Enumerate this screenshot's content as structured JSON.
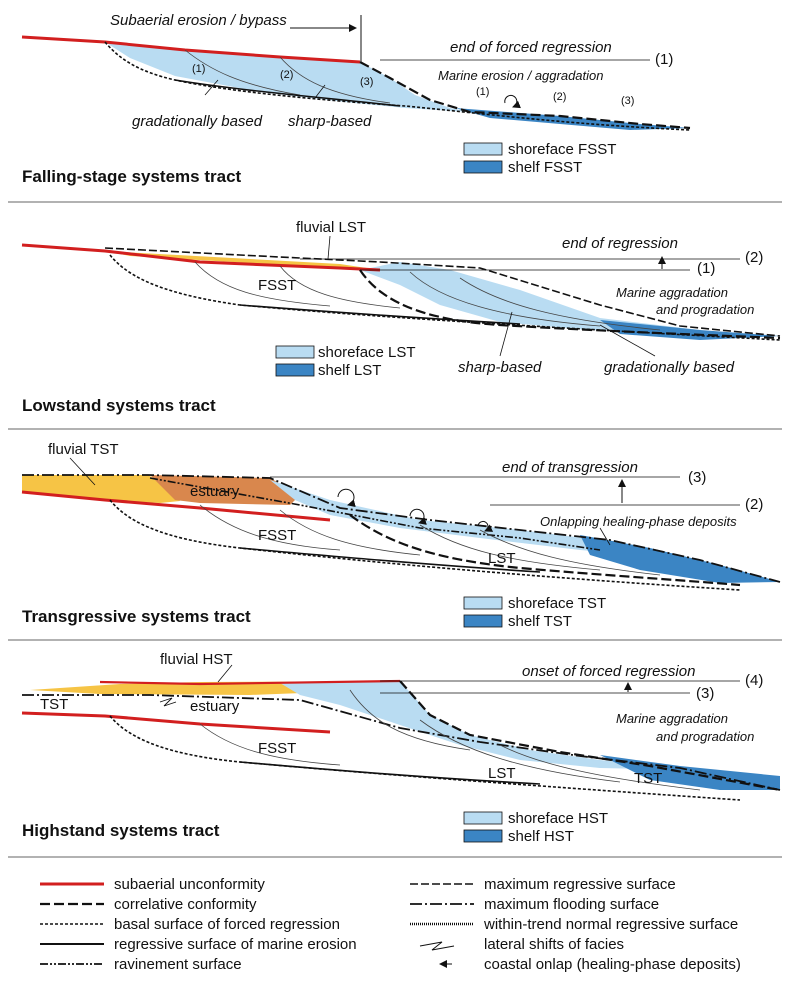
{
  "colors": {
    "shoreface": "#b9dcf2",
    "shelf": "#3b85c4",
    "fluvial": "#f6c445",
    "estuary": "#d9874d",
    "unconformity": "#d21f1f"
  },
  "panel1": {
    "title": "Falling-stage systems tract",
    "annot_top": "Subaerial erosion / bypass",
    "end_label": "end of forced regression",
    "end_num": "(1)",
    "marine_label": "Marine erosion / aggradation",
    "shore_steps": [
      "(1)",
      "(2)",
      "(3)"
    ],
    "shelf_steps": [
      "(1)",
      "(2)",
      "(3)"
    ],
    "base_left": "gradationally based",
    "base_right": "sharp-based",
    "legend": [
      "shoreface FSST",
      "shelf FSST"
    ]
  },
  "panel2": {
    "title": "Lowstand systems tract",
    "fluvial": "fluvial LST",
    "end_label": "end of regression",
    "num_a": "(2)",
    "num_b": "(1)",
    "fsst": "FSST",
    "marine_1": "Marine aggradation",
    "marine_2": "and progradation",
    "base_left": "sharp-based",
    "base_right": "gradationally based",
    "legend": [
      "shoreface LST",
      "shelf LST"
    ]
  },
  "panel3": {
    "title": "Transgressive systems tract",
    "fluvial": "fluvial TST",
    "estuary": "estuary",
    "end_label": "end of transgression",
    "num_a": "(3)",
    "num_b": "(2)",
    "onlap": "Onlapping healing-phase deposits",
    "fsst": "FSST",
    "lst": "LST",
    "legend": [
      "shoreface TST",
      "shelf TST"
    ]
  },
  "panel4": {
    "title": "Highstand systems tract",
    "fluvial": "fluvial HST",
    "tst_left": "TST",
    "estuary": "estuary",
    "end_label": "onset of forced regression",
    "num_a": "(4)",
    "num_b": "(3)",
    "marine_1": "Marine aggradation",
    "marine_2": "and progradation",
    "fsst": "FSST",
    "lst": "LST",
    "tst_right": "TST",
    "legend": [
      "shoreface HST",
      "shelf HST"
    ]
  },
  "key": {
    "left": [
      "subaerial unconformity",
      "correlative conformity",
      "basal surface of forced regression",
      "regressive surface of marine erosion",
      "ravinement surface"
    ],
    "right": [
      "maximum regressive surface",
      "maximum flooding surface",
      "within-trend normal regressive surface",
      "lateral shifts of facies",
      "coastal onlap (healing-phase deposits)"
    ]
  }
}
